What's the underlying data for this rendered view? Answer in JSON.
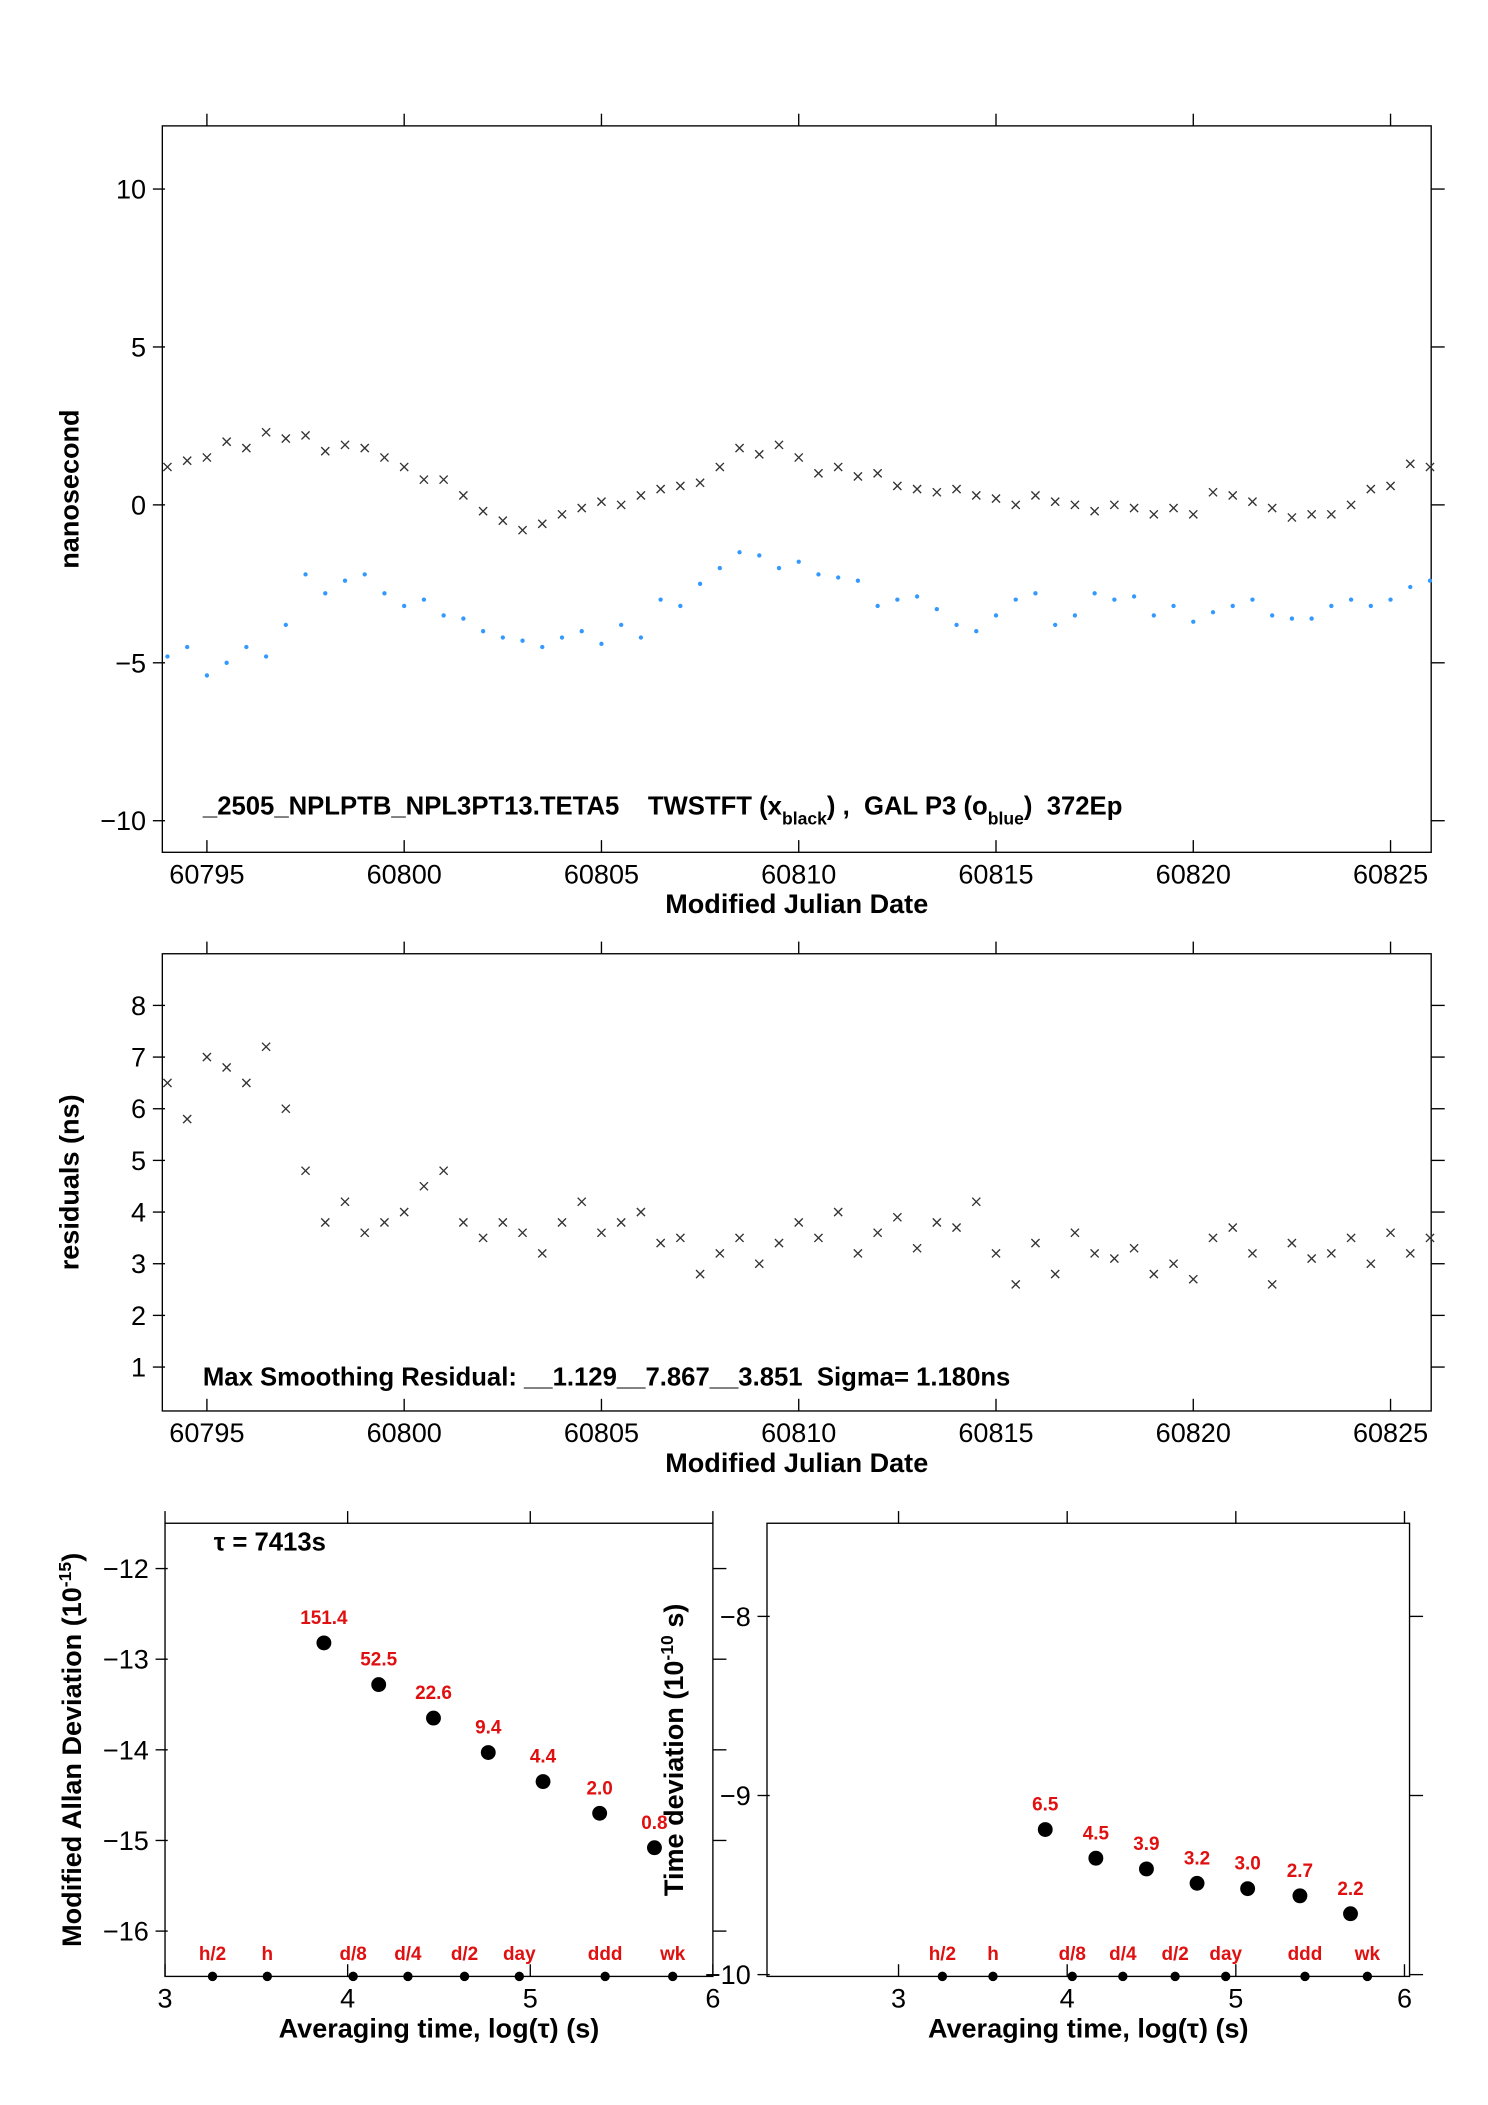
{
  "chart_data": [
    {
      "type": "scatter",
      "xlabel": "Modified Julian Date",
      "ylabel": [
        "nanosecond"
      ],
      "annotation": [
        "_2505_NPLPTB_NPL3PT13.TETA5    TWSTFT (x",
        "black",
        ") ,  GAL P3 (o",
        "blue",
        ")  372Ep"
      ],
      "xlim": [
        60793.87,
        60826.03
      ],
      "ylim": [
        -11,
        12
      ],
      "xticks": [
        60795,
        60800,
        60805,
        60810,
        60815,
        60820,
        60825
      ],
      "yticks": [
        {
          "value": -10,
          "label": "−10"
        },
        {
          "value": -5,
          "label": "−5"
        },
        0,
        5,
        10
      ],
      "x": [
        60794,
        60794.5,
        60795,
        60795.5,
        60796,
        60796.5,
        60797,
        60797.5,
        60798,
        60798.5,
        60799,
        60799.5,
        60800,
        60800.5,
        60801,
        60801.5,
        60802,
        60802.5,
        60803,
        60803.5,
        60804,
        60804.5,
        60805,
        60805.5,
        60806,
        60806.5,
        60807,
        60807.5,
        60808,
        60808.5,
        60809,
        60809.5,
        60810,
        60810.5,
        60811,
        60811.5,
        60812,
        60812.5,
        60813,
        60813.5,
        60814,
        60814.5,
        60815,
        60815.5,
        60816,
        60816.5,
        60817,
        60817.5,
        60818,
        60818.5,
        60819,
        60819.5,
        60820,
        60820.5,
        60821,
        60821.5,
        60822,
        60822.5,
        60823,
        60823.5,
        60824,
        60824.5,
        60825,
        60825.5,
        60826
      ],
      "series": [
        {
          "color": "#333333",
          "marker": "x",
          "values": [
            1.2,
            1.4,
            1.5,
            2.0,
            1.8,
            2.3,
            2.1,
            2.2,
            1.7,
            1.9,
            1.8,
            1.5,
            1.2,
            0.8,
            0.8,
            0.3,
            -0.2,
            -0.5,
            -0.8,
            -0.6,
            -0.3,
            -0.1,
            0.1,
            0.0,
            0.3,
            0.5,
            0.6,
            0.7,
            1.2,
            1.8,
            1.6,
            1.9,
            1.5,
            1.0,
            1.2,
            0.9,
            1.0,
            0.6,
            0.5,
            0.4,
            0.5,
            0.3,
            0.2,
            0.0,
            0.3,
            0.1,
            0.0,
            -0.2,
            0.0,
            -0.1,
            -0.3,
            -0.1,
            -0.3,
            0.4,
            0.3,
            0.1,
            -0.1,
            -0.4,
            -0.3,
            -0.3,
            0.0,
            0.5,
            0.6,
            1.3,
            1.2
          ]
        },
        {
          "color": "#3399ff",
          "marker": "dot",
          "values": [
            -4.8,
            -4.5,
            -5.4,
            -5.0,
            -4.5,
            -4.8,
            -3.8,
            -2.2,
            -2.8,
            -2.4,
            -2.2,
            -2.8,
            -3.2,
            -3.0,
            -3.5,
            -3.6,
            -4.0,
            -4.2,
            -4.3,
            -4.5,
            -4.2,
            -4.0,
            -4.4,
            -3.8,
            -4.2,
            -3.0,
            -3.2,
            -2.5,
            -2.0,
            -1.5,
            -1.6,
            -2.0,
            -1.8,
            -2.2,
            -2.3,
            -2.4,
            -3.2,
            -3.0,
            -2.9,
            -3.3,
            -3.8,
            -4.0,
            -3.5,
            -3.0,
            -2.8,
            -3.8,
            -3.5,
            -2.8,
            -3.0,
            -2.9,
            -3.5,
            -3.2,
            -3.7,
            -3.4,
            -3.2,
            -3.0,
            -3.5,
            -3.6,
            -3.6,
            -3.2,
            -3.0,
            -3.2,
            -3.0,
            -2.6,
            -2.4
          ]
        }
      ]
    },
    {
      "type": "scatter",
      "xlabel": "Modified Julian Date",
      "ylabel": [
        "residuals (ns)"
      ],
      "annotation": [
        "Max Smoothing Residual: __1.129__7.867__3.851  Sigma= 1.180ns"
      ],
      "xlim": [
        60793.87,
        60826.03
      ],
      "ylim": [
        0.15,
        9
      ],
      "xticks": [
        60795,
        60800,
        60805,
        60810,
        60815,
        60820,
        60825
      ],
      "yticks": [
        1,
        2,
        3,
        4,
        5,
        6,
        7,
        8
      ],
      "x": [
        60794,
        60794.5,
        60795,
        60795.5,
        60796,
        60796.5,
        60797,
        60797.5,
        60798,
        60798.5,
        60799,
        60799.5,
        60800,
        60800.5,
        60801,
        60801.5,
        60802,
        60802.5,
        60803,
        60803.5,
        60804,
        60804.5,
        60805,
        60805.5,
        60806,
        60806.5,
        60807,
        60807.5,
        60808,
        60808.5,
        60809,
        60809.5,
        60810,
        60810.5,
        60811,
        60811.5,
        60812,
        60812.5,
        60813,
        60813.5,
        60814,
        60814.5,
        60815,
        60815.5,
        60816,
        60816.5,
        60817,
        60817.5,
        60818,
        60818.5,
        60819,
        60819.5,
        60820,
        60820.5,
        60821,
        60821.5,
        60822,
        60822.5,
        60823,
        60823.5,
        60824,
        60824.5,
        60825,
        60825.5,
        60826
      ],
      "series": [
        {
          "color": "#333333",
          "marker": "x",
          "values": [
            6.5,
            5.8,
            7.0,
            6.8,
            6.5,
            7.2,
            6.0,
            4.8,
            3.8,
            4.2,
            3.6,
            3.8,
            4.0,
            4.5,
            4.8,
            3.8,
            3.5,
            3.8,
            3.6,
            3.2,
            3.8,
            4.2,
            3.6,
            3.8,
            4.0,
            3.4,
            3.5,
            2.8,
            3.2,
            3.5,
            3.0,
            3.4,
            3.8,
            3.5,
            4.0,
            3.2,
            3.6,
            3.9,
            3.3,
            3.8,
            3.7,
            4.2,
            3.2,
            2.6,
            3.4,
            2.8,
            3.6,
            3.2,
            3.1,
            3.3,
            2.8,
            3.0,
            2.7,
            3.5,
            3.7,
            3.2,
            2.6,
            3.4,
            3.1,
            3.2,
            3.5,
            3.0,
            3.6,
            3.2,
            3.5
          ]
        }
      ]
    },
    {
      "type": "scatter",
      "xlabel": "Averaging time, log(τ) (s)",
      "ylabel": [
        "Modified Allan Deviation (10",
        "-15",
        ")"
      ],
      "annotation": [
        "τ = 7413s"
      ],
      "xlim": [
        3,
        6
      ],
      "ylim": [
        -16.5,
        -11.5
      ],
      "xticks": [
        3,
        4,
        5,
        6
      ],
      "yticks": [
        {
          "value": -16,
          "label": "−16"
        },
        {
          "value": -15,
          "label": "−15"
        },
        {
          "value": -14,
          "label": "−14"
        },
        {
          "value": -13,
          "label": "−13"
        },
        {
          "value": -12,
          "label": "−12"
        }
      ],
      "x": [
        3.87,
        4.17,
        4.47,
        4.77,
        5.07,
        5.38,
        5.68
      ],
      "series": [
        {
          "color": "#000000",
          "marker": "circle",
          "values": [
            -12.82,
            -13.28,
            -13.65,
            -14.03,
            -14.35,
            -14.7,
            -15.08
          ]
        }
      ],
      "point_labels": [
        "151.4",
        "52.5",
        "22.6",
        "9.4",
        "4.4",
        "2.0",
        "0.8"
      ],
      "label_color": "#e01010",
      "interval_labels": [
        "h/2",
        "h",
        "d/8",
        "d/4",
        "d/2",
        "day",
        "ddd",
        "wk"
      ],
      "interval_x": [
        3.26,
        3.56,
        4.03,
        4.33,
        4.64,
        4.94,
        5.41,
        5.78
      ]
    },
    {
      "type": "scatter",
      "xlabel": "Averaging time, log(τ) (s)",
      "ylabel": [
        "Time deviation (10",
        "-10",
        " s)"
      ],
      "xlim": [
        2.22,
        6.03
      ],
      "ylim": [
        -10.01,
        -7.48
      ],
      "xticks": [
        3,
        4,
        5,
        6
      ],
      "yticks": [
        {
          "value": -10,
          "label": "−10"
        },
        {
          "value": -9,
          "label": "−9"
        },
        {
          "value": -8,
          "label": "−8"
        }
      ],
      "x": [
        3.87,
        4.17,
        4.47,
        4.77,
        5.07,
        5.38,
        5.68
      ],
      "series": [
        {
          "color": "#000000",
          "marker": "circle",
          "values": [
            -9.19,
            -9.35,
            -9.41,
            -9.49,
            -9.52,
            -9.56,
            -9.66
          ]
        }
      ],
      "point_labels": [
        "6.5",
        "4.5",
        "3.9",
        "3.2",
        "3.0",
        "2.7",
        "2.2"
      ],
      "label_color": "#e01010",
      "interval_labels": [
        "h/2",
        "h",
        "d/8",
        "d/4",
        "d/2",
        "day",
        "ddd",
        "wk"
      ],
      "interval_x": [
        3.26,
        3.56,
        4.03,
        4.33,
        4.64,
        4.94,
        5.41,
        5.78
      ]
    }
  ]
}
